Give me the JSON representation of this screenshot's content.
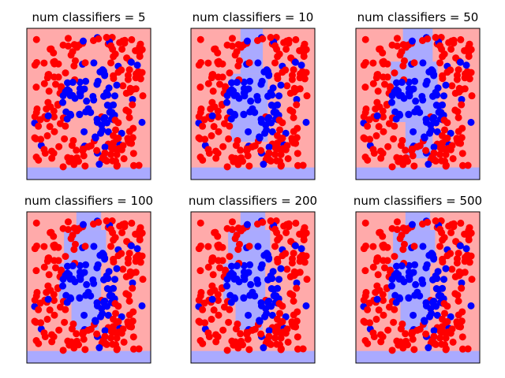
{
  "chart_data": [
    {
      "type": "scatter",
      "title": "num classifiers = 5",
      "n_classifiers": 5,
      "xticks": [],
      "yticks": [],
      "grid": false
    },
    {
      "type": "scatter",
      "title": "num classifiers = 10",
      "n_classifiers": 10,
      "xticks": [],
      "yticks": [],
      "grid": false
    },
    {
      "type": "scatter",
      "title": "num classifiers = 50",
      "n_classifiers": 50,
      "xticks": [],
      "yticks": [],
      "grid": false
    },
    {
      "type": "scatter",
      "title": "num classifiers = 100",
      "n_classifiers": 100,
      "xticks": [],
      "yticks": [],
      "grid": false
    },
    {
      "type": "scatter",
      "title": "num classifiers = 200",
      "n_classifiers": 200,
      "xticks": [],
      "yticks": [],
      "grid": false
    },
    {
      "type": "scatter",
      "title": "num classifiers = 500",
      "n_classifiers": 500,
      "xticks": [],
      "yticks": [],
      "grid": false
    }
  ],
  "colors": {
    "class_red": "#ff0000",
    "class_blue": "#0000ff",
    "region_red": "#ffaaaa",
    "region_blue": "#aaaaff"
  }
}
